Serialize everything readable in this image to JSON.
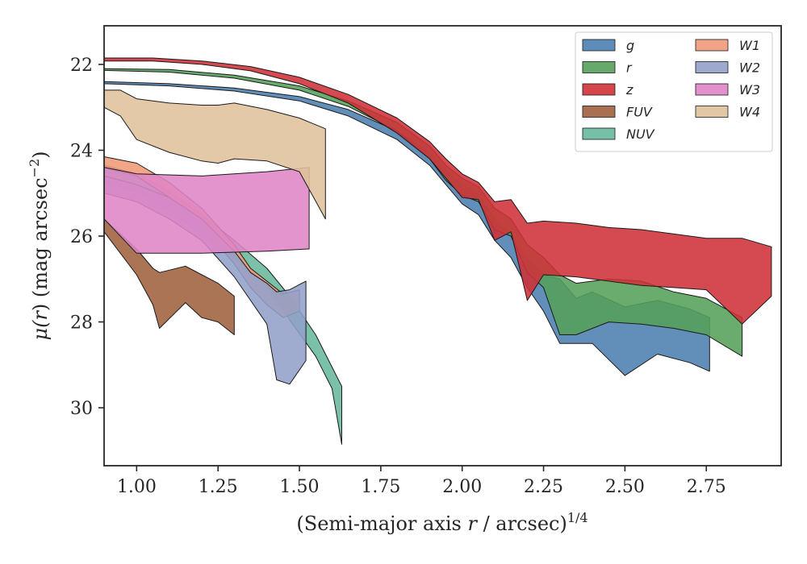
{
  "chart_data": {
    "type": "area",
    "title": "",
    "xlabel_main": "(Semi-major axis ",
    "xlabel_var": "r",
    "xlabel_tail": " / arcsec)",
    "xlabel_exp": "1/4",
    "ylabel_main": "μ(",
    "ylabel_var": "r",
    "ylabel_tail": ") (mag arcsec",
    "ylabel_exp": "−2",
    "ylabel_close": ")",
    "xlim": [
      0.9,
      2.98
    ],
    "ylim": [
      31.35,
      21.1
    ],
    "y_inverted": true,
    "xticks": [
      1.0,
      1.25,
      1.5,
      1.75,
      2.0,
      2.25,
      2.5,
      2.75
    ],
    "xtick_labels": [
      "1.00",
      "1.25",
      "1.50",
      "1.75",
      "2.00",
      "2.25",
      "2.50",
      "2.75"
    ],
    "yticks": [
      22,
      24,
      26,
      28,
      30
    ],
    "ytick_labels": [
      "22",
      "24",
      "26",
      "28",
      "30"
    ],
    "grid": false,
    "legend_position": "top-right",
    "legend_columns": 2,
    "series": [
      {
        "name": "g",
        "color": "#4c7fb0",
        "points": [
          [
            0.9,
            22.4,
            22.45
          ],
          [
            1.1,
            22.45,
            22.5
          ],
          [
            1.3,
            22.55,
            22.62
          ],
          [
            1.5,
            22.75,
            22.85
          ],
          [
            1.65,
            23.05,
            23.2
          ],
          [
            1.8,
            23.55,
            23.75
          ],
          [
            1.9,
            24.05,
            24.35
          ],
          [
            1.95,
            24.45,
            24.8
          ],
          [
            2.0,
            24.8,
            25.25
          ],
          [
            2.05,
            25.05,
            25.5
          ],
          [
            2.1,
            25.6,
            26.1
          ],
          [
            2.15,
            25.95,
            26.5
          ],
          [
            2.2,
            26.55,
            27.2
          ],
          [
            2.25,
            26.9,
            27.75
          ],
          [
            2.3,
            27.0,
            28.5
          ],
          [
            2.35,
            27.45,
            28.5
          ],
          [
            2.4,
            27.3,
            28.5
          ],
          [
            2.5,
            27.65,
            29.25
          ],
          [
            2.6,
            27.5,
            28.75
          ],
          [
            2.7,
            27.7,
            28.95
          ],
          [
            2.76,
            27.9,
            29.15
          ]
        ]
      },
      {
        "name": "r",
        "color": "#55a05a",
        "points": [
          [
            0.9,
            22.1,
            22.14
          ],
          [
            1.1,
            22.12,
            22.18
          ],
          [
            1.3,
            22.25,
            22.32
          ],
          [
            1.5,
            22.5,
            22.6
          ],
          [
            1.65,
            22.85,
            22.98
          ],
          [
            1.8,
            23.35,
            23.55
          ],
          [
            1.9,
            23.9,
            24.2
          ],
          [
            1.95,
            24.35,
            24.7
          ],
          [
            2.0,
            24.65,
            25.05
          ],
          [
            2.05,
            24.85,
            25.2
          ],
          [
            2.1,
            25.35,
            25.85
          ],
          [
            2.15,
            25.6,
            26.0
          ],
          [
            2.2,
            26.2,
            26.85
          ],
          [
            2.25,
            26.5,
            27.2
          ],
          [
            2.3,
            26.9,
            28.3
          ],
          [
            2.35,
            27.1,
            28.3
          ],
          [
            2.45,
            27.0,
            28.0
          ],
          [
            2.55,
            27.05,
            28.05
          ],
          [
            2.65,
            27.3,
            28.15
          ],
          [
            2.75,
            27.45,
            28.3
          ],
          [
            2.86,
            27.9,
            28.8
          ]
        ]
      },
      {
        "name": "z",
        "color": "#cf3138",
        "points": [
          [
            0.9,
            21.85,
            21.92
          ],
          [
            1.05,
            21.85,
            21.92
          ],
          [
            1.2,
            21.92,
            22.0
          ],
          [
            1.35,
            22.05,
            22.15
          ],
          [
            1.5,
            22.3,
            22.45
          ],
          [
            1.65,
            22.7,
            22.9
          ],
          [
            1.8,
            23.25,
            23.6
          ],
          [
            1.9,
            23.8,
            24.2
          ],
          [
            1.95,
            24.2,
            24.65
          ],
          [
            2.0,
            24.55,
            25.1
          ],
          [
            2.05,
            24.75,
            25.15
          ],
          [
            2.1,
            25.2,
            26.1
          ],
          [
            2.15,
            25.15,
            25.9
          ],
          [
            2.2,
            25.7,
            27.5
          ],
          [
            2.25,
            25.65,
            26.9
          ],
          [
            2.35,
            25.7,
            26.95
          ],
          [
            2.45,
            25.8,
            27.05
          ],
          [
            2.55,
            25.85,
            27.15
          ],
          [
            2.65,
            25.95,
            27.2
          ],
          [
            2.75,
            26.05,
            27.25
          ],
          [
            2.86,
            26.05,
            28.05
          ],
          [
            2.95,
            26.25,
            27.4
          ]
        ]
      },
      {
        "name": "FUV",
        "color": "#9e613d",
        "points": [
          [
            0.9,
            25.6,
            25.9
          ],
          [
            1.0,
            26.3,
            26.9
          ],
          [
            1.05,
            26.75,
            27.6
          ],
          [
            1.07,
            26.85,
            28.15
          ],
          [
            1.15,
            26.7,
            27.55
          ],
          [
            1.2,
            26.9,
            27.9
          ],
          [
            1.25,
            27.1,
            28.0
          ],
          [
            1.3,
            27.4,
            28.3
          ]
        ]
      },
      {
        "name": "NUV",
        "color": "#69b89e",
        "points": [
          [
            0.9,
            24.35,
            24.75
          ],
          [
            1.0,
            24.55,
            24.95
          ],
          [
            1.1,
            24.95,
            25.4
          ],
          [
            1.2,
            25.5,
            25.95
          ],
          [
            1.3,
            26.1,
            26.5
          ],
          [
            1.4,
            26.75,
            27.15
          ],
          [
            1.47,
            27.4,
            27.95
          ],
          [
            1.55,
            28.3,
            28.8
          ],
          [
            1.6,
            29.05,
            29.55
          ],
          [
            1.63,
            29.5,
            30.85
          ]
        ]
      },
      {
        "name": "W1",
        "color": "#ef9a78",
        "points": [
          [
            0.9,
            24.15,
            24.4
          ],
          [
            1.0,
            24.3,
            24.6
          ],
          [
            1.1,
            24.75,
            25.1
          ],
          [
            1.2,
            25.35,
            25.75
          ],
          [
            1.3,
            26.2,
            26.65
          ],
          [
            1.35,
            26.75,
            27.2
          ],
          [
            1.4,
            27.05,
            27.6
          ],
          [
            1.45,
            27.35,
            27.9
          ],
          [
            1.5,
            27.25,
            27.75
          ]
        ]
      },
      {
        "name": "W2",
        "color": "#92a1c8",
        "points": [
          [
            0.9,
            24.6,
            25.0
          ],
          [
            1.0,
            24.8,
            25.2
          ],
          [
            1.1,
            25.1,
            25.6
          ],
          [
            1.2,
            25.6,
            26.1
          ],
          [
            1.3,
            26.35,
            26.95
          ],
          [
            1.35,
            26.85,
            27.5
          ],
          [
            1.4,
            27.1,
            28.05
          ],
          [
            1.43,
            27.3,
            29.35
          ],
          [
            1.47,
            27.25,
            29.45
          ],
          [
            1.52,
            27.05,
            28.9
          ]
        ]
      },
      {
        "name": "W3",
        "color": "#df85c6",
        "points": [
          [
            0.9,
            24.4,
            25.6
          ],
          [
            1.0,
            24.55,
            26.4
          ],
          [
            1.2,
            24.6,
            26.4
          ],
          [
            1.4,
            24.5,
            26.35
          ],
          [
            1.53,
            24.4,
            26.3
          ]
        ]
      },
      {
        "name": "W4",
        "color": "#dfc19b",
        "points": [
          [
            0.9,
            22.6,
            23.0
          ],
          [
            0.95,
            22.6,
            23.2
          ],
          [
            1.0,
            22.8,
            23.75
          ],
          [
            1.1,
            22.9,
            24.05
          ],
          [
            1.2,
            22.95,
            24.25
          ],
          [
            1.25,
            22.95,
            24.3
          ],
          [
            1.3,
            22.9,
            24.2
          ],
          [
            1.4,
            23.05,
            24.25
          ],
          [
            1.5,
            23.25,
            24.5
          ],
          [
            1.58,
            23.5,
            25.6
          ]
        ]
      }
    ]
  }
}
